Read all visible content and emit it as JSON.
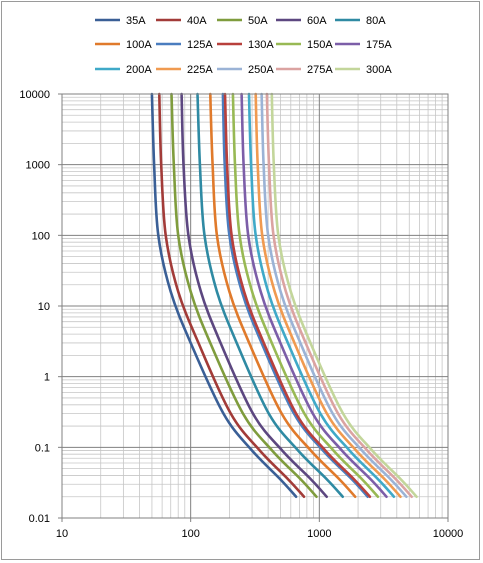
{
  "chart_data": {
    "type": "line",
    "title": "",
    "xlabel": "",
    "ylabel": "",
    "x_scale": "log",
    "y_scale": "log",
    "xlim": [
      10,
      10000
    ],
    "ylim": [
      0.01,
      10000
    ],
    "x_ticks": [
      "10",
      "100",
      "1000",
      "10000"
    ],
    "y_ticks": [
      "0.01",
      "0.1",
      "1",
      "10",
      "100",
      "1000",
      "10000"
    ],
    "grid": true,
    "legend_position": "top",
    "series": [
      {
        "name": "35A",
        "color": "#3a5f96",
        "points": [
          [
            50,
            10000
          ],
          [
            52,
            1000
          ],
          [
            56,
            100
          ],
          [
            70,
            16
          ],
          [
            100,
            3
          ],
          [
            180,
            0.3
          ],
          [
            300,
            0.09
          ],
          [
            500,
            0.035
          ],
          [
            660,
            0.02
          ]
        ]
      },
      {
        "name": "40A",
        "color": "#a23b38",
        "points": [
          [
            57,
            10000
          ],
          [
            59,
            1000
          ],
          [
            64,
            100
          ],
          [
            80,
            16
          ],
          [
            115,
            3
          ],
          [
            205,
            0.3
          ],
          [
            345,
            0.09
          ],
          [
            575,
            0.035
          ],
          [
            760,
            0.02
          ]
        ]
      },
      {
        "name": "50A",
        "color": "#7f9c3d",
        "points": [
          [
            71,
            10000
          ],
          [
            74,
            1000
          ],
          [
            80,
            100
          ],
          [
            100,
            16
          ],
          [
            142,
            3
          ],
          [
            255,
            0.3
          ],
          [
            430,
            0.09
          ],
          [
            720,
            0.035
          ],
          [
            950,
            0.02
          ]
        ]
      },
      {
        "name": "60A",
        "color": "#5c4780",
        "points": [
          [
            85,
            10000
          ],
          [
            88,
            1000
          ],
          [
            96,
            100
          ],
          [
            120,
            16
          ],
          [
            171,
            3
          ],
          [
            305,
            0.3
          ],
          [
            515,
            0.09
          ],
          [
            865,
            0.035
          ],
          [
            1140,
            0.02
          ]
        ]
      },
      {
        "name": "80A",
        "color": "#2f8aa3",
        "points": [
          [
            113,
            10000
          ],
          [
            118,
            1000
          ],
          [
            128,
            100
          ],
          [
            160,
            16
          ],
          [
            228,
            3
          ],
          [
            405,
            0.3
          ],
          [
            685,
            0.09
          ],
          [
            1150,
            0.035
          ],
          [
            1520,
            0.02
          ]
        ]
      },
      {
        "name": "100A",
        "color": "#e07a2b",
        "points": [
          [
            142,
            10000
          ],
          [
            148,
            1000
          ],
          [
            160,
            100
          ],
          [
            200,
            16
          ],
          [
            285,
            3
          ],
          [
            510,
            0.3
          ],
          [
            860,
            0.09
          ],
          [
            1440,
            0.035
          ],
          [
            1900,
            0.02
          ]
        ]
      },
      {
        "name": "125A",
        "color": "#4a7dbf",
        "points": [
          [
            178,
            10000
          ],
          [
            184,
            1000
          ],
          [
            200,
            100
          ],
          [
            250,
            16
          ],
          [
            356,
            3
          ],
          [
            635,
            0.3
          ],
          [
            1070,
            0.09
          ],
          [
            1800,
            0.035
          ],
          [
            2375,
            0.02
          ]
        ]
      },
      {
        "name": "130A",
        "color": "#b8403c",
        "points": [
          [
            185,
            10000
          ],
          [
            192,
            1000
          ],
          [
            208,
            100
          ],
          [
            260,
            16
          ],
          [
            370,
            3
          ],
          [
            660,
            0.3
          ],
          [
            1115,
            0.09
          ],
          [
            1870,
            0.035
          ],
          [
            2470,
            0.02
          ]
        ]
      },
      {
        "name": "150A",
        "color": "#98b954",
        "points": [
          [
            213,
            10000
          ],
          [
            221,
            1000
          ],
          [
            240,
            100
          ],
          [
            300,
            16
          ],
          [
            427,
            3
          ],
          [
            765,
            0.3
          ],
          [
            1290,
            0.09
          ],
          [
            2160,
            0.035
          ],
          [
            2850,
            0.02
          ]
        ]
      },
      {
        "name": "175A",
        "color": "#7c5ea8",
        "points": [
          [
            249,
            10000
          ],
          [
            258,
            1000
          ],
          [
            280,
            100
          ],
          [
            350,
            16
          ],
          [
            498,
            3
          ],
          [
            890,
            0.3
          ],
          [
            1500,
            0.09
          ],
          [
            2520,
            0.035
          ],
          [
            3325,
            0.02
          ]
        ]
      },
      {
        "name": "200A",
        "color": "#3fa9c8",
        "points": [
          [
            284,
            10000
          ],
          [
            295,
            1000
          ],
          [
            320,
            100
          ],
          [
            400,
            16
          ],
          [
            570,
            3
          ],
          [
            1020,
            0.3
          ],
          [
            1720,
            0.09
          ],
          [
            2880,
            0.035
          ],
          [
            3800,
            0.02
          ]
        ]
      },
      {
        "name": "225A",
        "color": "#f09a50",
        "points": [
          [
            320,
            10000
          ],
          [
            332,
            1000
          ],
          [
            360,
            100
          ],
          [
            450,
            16
          ],
          [
            641,
            3
          ],
          [
            1145,
            0.3
          ],
          [
            1935,
            0.09
          ],
          [
            3240,
            0.035
          ],
          [
            4275,
            0.02
          ]
        ]
      },
      {
        "name": "250A",
        "color": "#9bb3d6",
        "points": [
          [
            356,
            10000
          ],
          [
            369,
            1000
          ],
          [
            400,
            100
          ],
          [
            500,
            16
          ],
          [
            712,
            3
          ],
          [
            1270,
            0.3
          ],
          [
            2150,
            0.09
          ],
          [
            3600,
            0.035
          ],
          [
            4750,
            0.02
          ]
        ]
      },
      {
        "name": "275A",
        "color": "#dba3a1",
        "points": [
          [
            391,
            10000
          ],
          [
            406,
            1000
          ],
          [
            440,
            100
          ],
          [
            550,
            16
          ],
          [
            783,
            3
          ],
          [
            1400,
            0.3
          ],
          [
            2365,
            0.09
          ],
          [
            3960,
            0.035
          ],
          [
            5225,
            0.02
          ]
        ]
      },
      {
        "name": "300A",
        "color": "#c3d69b",
        "points": [
          [
            427,
            10000
          ],
          [
            443,
            1000
          ],
          [
            480,
            100
          ],
          [
            600,
            16
          ],
          [
            854,
            3
          ],
          [
            1530,
            0.3
          ],
          [
            2580,
            0.09
          ],
          [
            4320,
            0.035
          ],
          [
            5700,
            0.02
          ]
        ]
      }
    ]
  }
}
